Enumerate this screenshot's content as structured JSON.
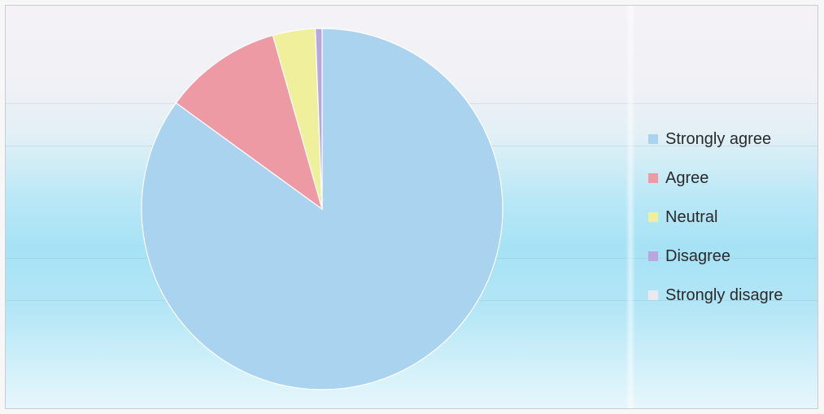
{
  "chart_data": {
    "type": "pie",
    "title": "",
    "categories": [
      "Strongly agree",
      "Agree",
      "Neutral",
      "Disagree",
      "Strongly disagre"
    ],
    "values": [
      85.0,
      10.6,
      3.8,
      0.6,
      0.0
    ],
    "colors": [
      "#a9d3ef",
      "#ee9aa4",
      "#f0ef9c",
      "#b9a6de",
      "#e9e9ef"
    ],
    "legend_position": "right"
  }
}
